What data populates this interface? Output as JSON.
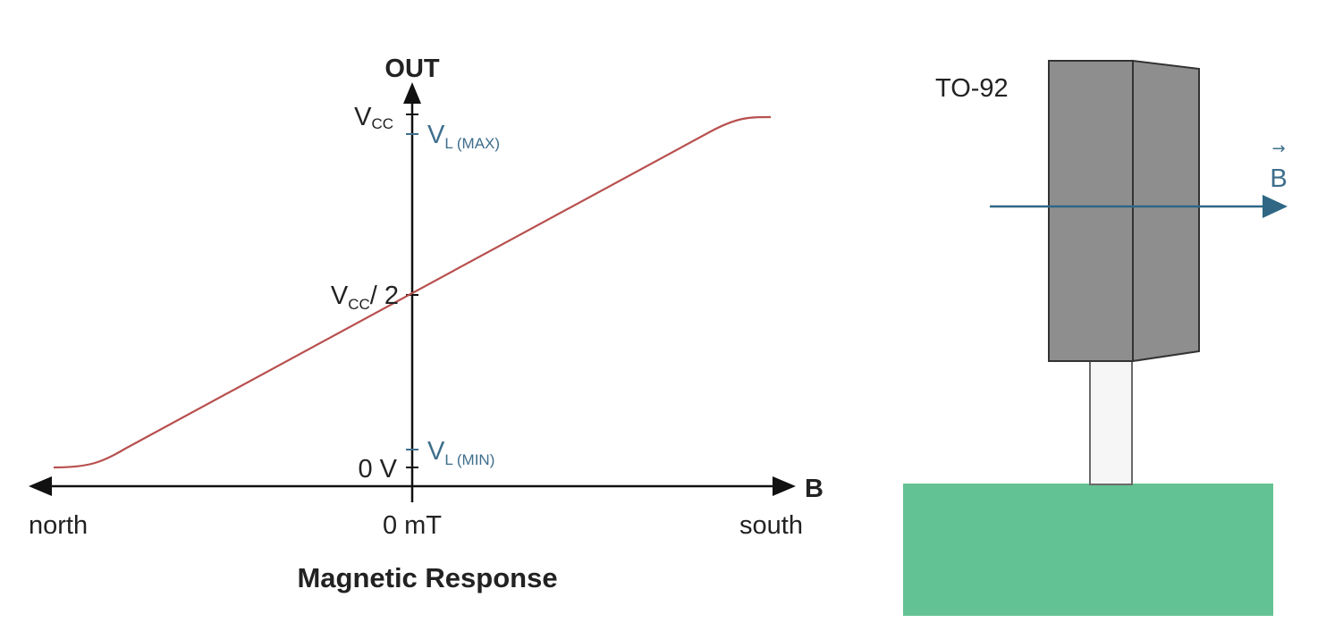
{
  "graph": {
    "title": "Magnetic Response",
    "y_axis_label": "OUT",
    "x_axis_label": "B",
    "x_labels": {
      "left": "north",
      "center": "0 mT",
      "right": "south"
    },
    "y_labels": {
      "vcc_main": "V",
      "vcc_sub": "CC",
      "vcc_half_main": "V",
      "vcc_half_sub": "CC",
      "vcc_half_suffix": "/ 2",
      "zero": "0 V",
      "vl_max_main": "V",
      "vl_max_sub": "L (MAX)",
      "vl_min_main": "V",
      "vl_min_sub": "L (MIN)"
    }
  },
  "package": {
    "label": "TO-92",
    "field_label": "B",
    "field_vector_mark": "→"
  },
  "colors": {
    "curve": "#b8504f",
    "annotation_blue": "#3e6e8c",
    "field_arrow": "#2f6785",
    "package_body": "#8e8e8e",
    "pcb": "#63c293",
    "axis": "#111111"
  }
}
